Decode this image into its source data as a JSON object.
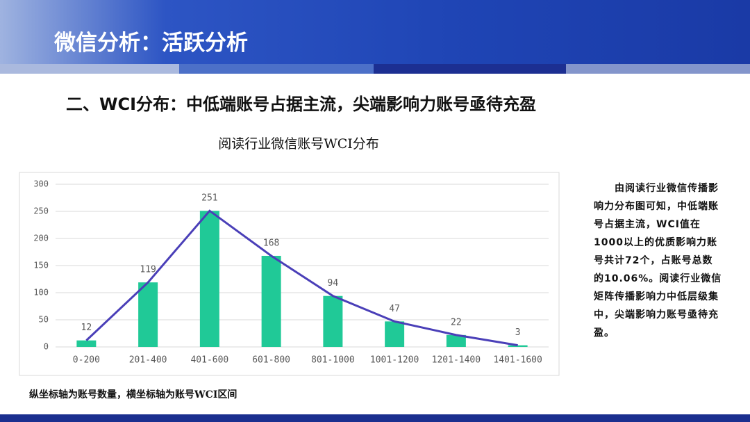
{
  "header": {
    "title": "微信分析：活跃分析"
  },
  "subtitle": "二、WCI分布：中低端账号占据主流，尖端影响力账号亟待充盈",
  "chart_data": {
    "type": "bar",
    "title": "阅读行业微信账号WCI分布",
    "categories": [
      "0-200",
      "201-400",
      "401-600",
      "601-800",
      "801-1000",
      "1001-1200",
      "1201-1400",
      "1401-1600"
    ],
    "values": [
      12,
      119,
      251,
      168,
      94,
      47,
      22,
      3
    ],
    "color": "#20c997",
    "line_overlay": true,
    "line_color": "#4a3fb8",
    "ylim": [
      0,
      300
    ],
    "yticks": [
      0,
      50,
      100,
      150,
      200,
      250,
      300
    ],
    "grid": true
  },
  "note": "由阅读行业微信传播影响力分布图可知，中低端账号占据主流，WCI值在1000以上的优质影响力账号共计72个，占账号总数的10.06%。阅读行业微信矩阵传播影响力中低层级集中，尖端影响力账号亟待充盈。",
  "footnote": "纵坐标轴为账号数量，横坐标轴为账号WCI区间"
}
